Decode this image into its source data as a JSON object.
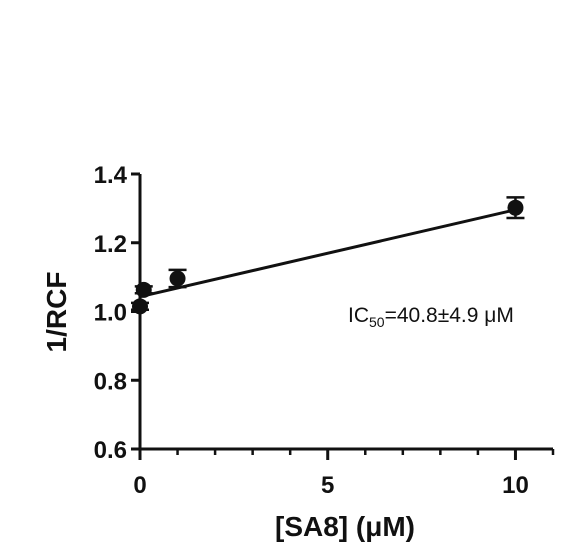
{
  "chart_data": {
    "type": "scatter",
    "xlabel": "[SA8] (μM)",
    "ylabel": "1/RCF",
    "xlim": [
      0,
      11
    ],
    "ylim": [
      0.6,
      1.4
    ],
    "x_ticks": [
      0,
      5,
      10
    ],
    "x_tick_labels": [
      "0",
      "5",
      "10"
    ],
    "y_ticks": [
      0.6,
      0.8,
      1.0,
      1.2,
      1.4
    ],
    "y_tick_labels": [
      "0.6",
      "0.8",
      "1.0",
      "1.2",
      "1.4"
    ],
    "series": [
      {
        "points": [
          {
            "x": 0,
            "y": 1.015,
            "err": 0.01
          },
          {
            "x": 0.1,
            "y": 1.063,
            "err": 0.01
          },
          {
            "x": 1,
            "y": 1.096,
            "err": 0.025
          },
          {
            "x": 10,
            "y": 1.302,
            "err": 0.03
          }
        ]
      }
    ],
    "fit_line": {
      "x": [
        0,
        10
      ],
      "y": [
        1.043,
        1.296
      ]
    },
    "annotation": {
      "prefix": "IC",
      "subscript": "50",
      "suffix": "=40.8±4.9 μM"
    },
    "grid": false,
    "color": "#111111"
  }
}
